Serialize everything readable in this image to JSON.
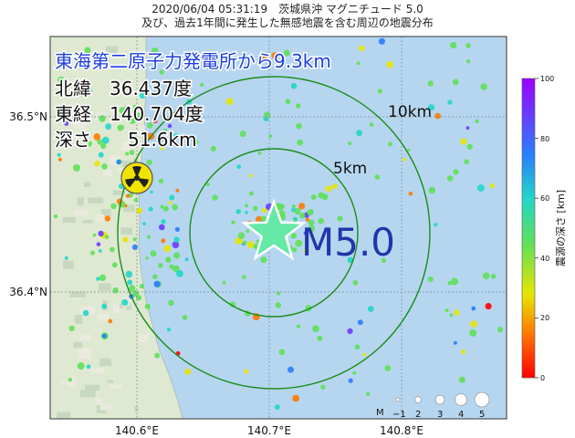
{
  "header": {
    "line1": "2020/06/04 05:31:19　茨城県沖 マグニチュード 5.0",
    "line2": "及び、過去1年間に発生した無感地震を含む周辺の地震分布"
  },
  "info": {
    "distance": "東海第二原子力発電所から9.3km",
    "latitude": "北緯　36.437度",
    "longitude": "東経　140.704度",
    "depth": "深さ　　51.6km"
  },
  "epicenter": {
    "magnitude_label": "M5.0",
    "lat": 36.437,
    "lon": 140.704,
    "depth_km": 51.6,
    "star_color": "#66e8a6"
  },
  "rings": {
    "inner_label": "5km",
    "outer_label": "10km",
    "color": "#1a8c1a"
  },
  "axes": {
    "lon_ticks": [
      {
        "label": "140.6°E",
        "value": 140.6
      },
      {
        "label": "140.7°E",
        "value": 140.7
      },
      {
        "label": "140.8°E",
        "value": 140.8
      }
    ],
    "lat_ticks": [
      {
        "label": "36.5°N",
        "value": 36.5
      },
      {
        "label": "36.4°N",
        "value": 36.4
      }
    ]
  },
  "colorbar": {
    "title": "震源の深さ [km]",
    "ticks": [
      "100",
      "80",
      "60",
      "40",
      "20",
      "0"
    ],
    "colors": [
      "#ff0000",
      "#ff7a00",
      "#e6e600",
      "#5fe05a",
      "#22d6c8",
      "#2a7cff",
      "#6a3cff",
      "#9b00ff"
    ]
  },
  "scale": {
    "label": "M",
    "items": [
      "−1",
      "2",
      "3",
      "4",
      "5"
    ]
  },
  "colors": {
    "ocean": "#b6d6f0",
    "land": "#dfe9d2",
    "nuclear": "#f1e400"
  }
}
